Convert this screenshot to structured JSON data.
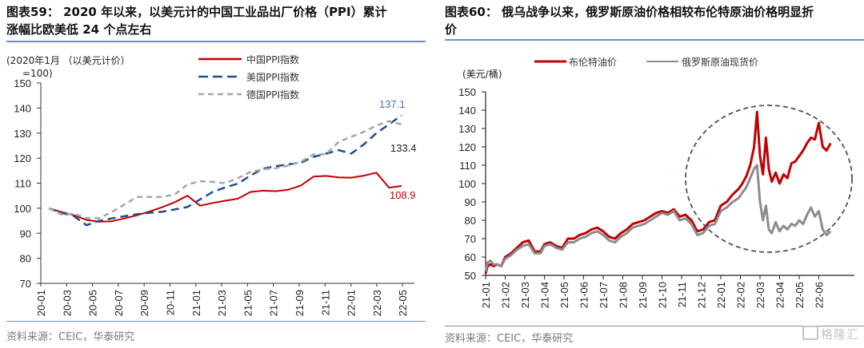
{
  "left": {
    "title_line1": "图表59：  2020 年以来，以美元计的中国工业品出厂价格（PPI）累计",
    "title_line2": "涨幅比欧美低 24 个点左右",
    "source": "资料来源：CEIC，华泰研究"
  },
  "right": {
    "title_line1": "图表60：  俄乌战争以来，俄罗斯原油价格相较布伦特原油价格明显折",
    "title_line2": "价",
    "source": "资料来源：CEIC，华泰研究",
    "watermark": "格隆汇"
  },
  "chart_data": [
    {
      "type": "line",
      "title": "2020 年以来，以美元计的中国工业品出厂价格（PPI）累计涨幅比欧美低 24 个点左右",
      "ylabel": "(2020年1月 （以美元计价）=100)",
      "ylim": [
        70,
        150
      ],
      "yticks": [
        "70",
        "80",
        "90",
        "100",
        "110",
        "120",
        "130",
        "140",
        "150"
      ],
      "x_tick_labels": [
        "20-01",
        "20-03",
        "20-05",
        "20-07",
        "20-09",
        "20-11",
        "21-01",
        "21-03",
        "21-05",
        "21-07",
        "21-09",
        "21-11",
        "22-01",
        "22-03",
        "22-05"
      ],
      "legend_position": "top-right",
      "x": [
        "20-01",
        "20-02",
        "20-03",
        "20-04",
        "20-05",
        "20-06",
        "20-07",
        "20-08",
        "20-09",
        "20-10",
        "20-11",
        "20-12",
        "21-01",
        "21-02",
        "21-03",
        "21-04",
        "21-05",
        "21-06",
        "21-07",
        "21-08",
        "21-09",
        "21-10",
        "21-11",
        "21-12",
        "22-01",
        "22-02",
        "22-03",
        "22-04",
        "22-05"
      ],
      "series": [
        {
          "name": "中国PPI指数",
          "color": "#c00000",
          "style": "solid",
          "values": [
            100,
            98.5,
            97.2,
            95.3,
            94.6,
            94.8,
            95.9,
            97.2,
            98.7,
            100.4,
            102.4,
            105.0,
            101.0,
            102.1,
            103.0,
            103.8,
            106.5,
            107.0,
            106.8,
            107.4,
            109.0,
            112.6,
            112.9,
            112.3,
            112.2,
            113.0,
            114.2,
            108.2,
            108.9
          ]
        },
        {
          "name": "美国PPI指数",
          "color": "#1f4e8c",
          "style": "dash",
          "values": [
            100,
            98.2,
            96.8,
            93.2,
            95.0,
            95.9,
            96.8,
            97.6,
            98.2,
            98.6,
            99.5,
            100.5,
            103.5,
            106.5,
            108.3,
            109.8,
            113.0,
            115.8,
            116.8,
            117.5,
            118.2,
            120.5,
            121.8,
            123.2,
            121.8,
            125.5,
            130.0,
            133.5,
            137.1
          ]
        },
        {
          "name": "德国PPI指数",
          "color": "#a6a6a6",
          "style": "dash",
          "values": [
            100,
            97.5,
            97.8,
            96.0,
            96.0,
            98.5,
            101.5,
            104.5,
            104.5,
            104.5,
            105.5,
            109.5,
            110.8,
            110.5,
            110.0,
            112.0,
            114.5,
            115.5,
            116.0,
            117.0,
            118.5,
            121.5,
            121.5,
            126.5,
            128.5,
            130.5,
            133.0,
            134.8,
            133.4
          ]
        }
      ],
      "annotations": [
        {
          "text": "137.1",
          "series": "美国PPI指数",
          "color": "#4472c4"
        },
        {
          "text": "133.4",
          "series": "德国PPI指数",
          "color": "#222222"
        },
        {
          "text": "108.9",
          "series": "中国PPI指数",
          "color": "#c00000"
        }
      ]
    },
    {
      "type": "line",
      "title": "俄乌战争以来，俄罗斯原油价格相较布伦特原油价格明显折价",
      "ylabel": "(美元/桶)",
      "ylim": [
        50,
        150
      ],
      "yticks": [
        "50",
        "60",
        "70",
        "80",
        "90",
        "100",
        "110",
        "120",
        "130",
        "140",
        "150"
      ],
      "x_tick_labels": [
        "21-01",
        "21-02",
        "21-03",
        "21-04",
        "21-05",
        "21-06",
        "21-07",
        "21-08",
        "21-09",
        "21-10",
        "21-11",
        "21-12",
        "22-01",
        "22-02",
        "22-03",
        "22-04",
        "22-05",
        "22-06"
      ],
      "legend_position": "top",
      "x_month_index": [
        0.0,
        0.1,
        0.25,
        0.4,
        0.6,
        0.8,
        1.0,
        1.3,
        1.6,
        1.9,
        2.2,
        2.5,
        2.8,
        3.0,
        3.3,
        3.6,
        3.9,
        4.2,
        4.5,
        4.8,
        5.1,
        5.4,
        5.7,
        6.0,
        6.3,
        6.6,
        6.9,
        7.2,
        7.5,
        7.8,
        8.1,
        8.4,
        8.7,
        9.0,
        9.3,
        9.6,
        9.9,
        10.2,
        10.5,
        10.8,
        11.1,
        11.4,
        11.7,
        12.0,
        12.3,
        12.6,
        12.9,
        13.1,
        13.3,
        13.5,
        13.7,
        13.85,
        14.0,
        14.15,
        14.3,
        14.45,
        14.6,
        14.8,
        15.0,
        15.2,
        15.4,
        15.6,
        15.8,
        16.0,
        16.2,
        16.4,
        16.6,
        16.8,
        17.0,
        17.2,
        17.4,
        17.6
      ],
      "series": [
        {
          "name": "布伦特油价",
          "color": "#c00000",
          "style": "solid",
          "values": [
            51,
            55,
            56,
            55,
            56,
            55,
            60,
            62,
            65,
            68,
            69,
            63,
            63,
            67,
            68,
            66,
            65,
            70,
            70,
            72,
            73,
            75,
            76,
            74,
            71,
            70,
            73,
            75,
            78,
            79,
            80,
            82,
            84,
            85,
            84,
            86,
            82,
            83,
            80,
            74,
            75,
            79,
            80,
            88,
            90,
            94,
            97,
            100,
            104,
            110,
            120,
            139,
            115,
            105,
            125,
            108,
            101,
            106,
            100,
            105,
            103,
            111,
            112,
            115,
            118,
            122,
            125,
            124,
            133,
            120,
            118,
            122
          ]
        },
        {
          "name": "俄罗斯原油现货价",
          "color": "#8c8c8c",
          "style": "solid",
          "values": [
            52,
            57,
            58,
            56,
            56,
            55,
            59,
            61,
            64,
            66,
            67,
            62,
            62,
            66,
            67,
            65,
            64,
            68,
            68,
            70,
            71,
            73,
            74,
            72,
            69,
            68,
            71,
            73,
            76,
            77,
            78,
            80,
            82,
            84,
            83,
            85,
            80,
            81,
            78,
            72,
            73,
            77,
            78,
            85,
            87,
            90,
            92,
            95,
            98,
            103,
            108,
            110,
            90,
            80,
            88,
            75,
            73,
            79,
            74,
            77,
            75,
            78,
            77,
            80,
            78,
            83,
            87,
            82,
            85,
            75,
            72,
            74
          ]
        }
      ],
      "annotations": [
        {
          "type": "dashed-ellipse",
          "description": "highlighted discount period since war"
        }
      ]
    }
  ]
}
